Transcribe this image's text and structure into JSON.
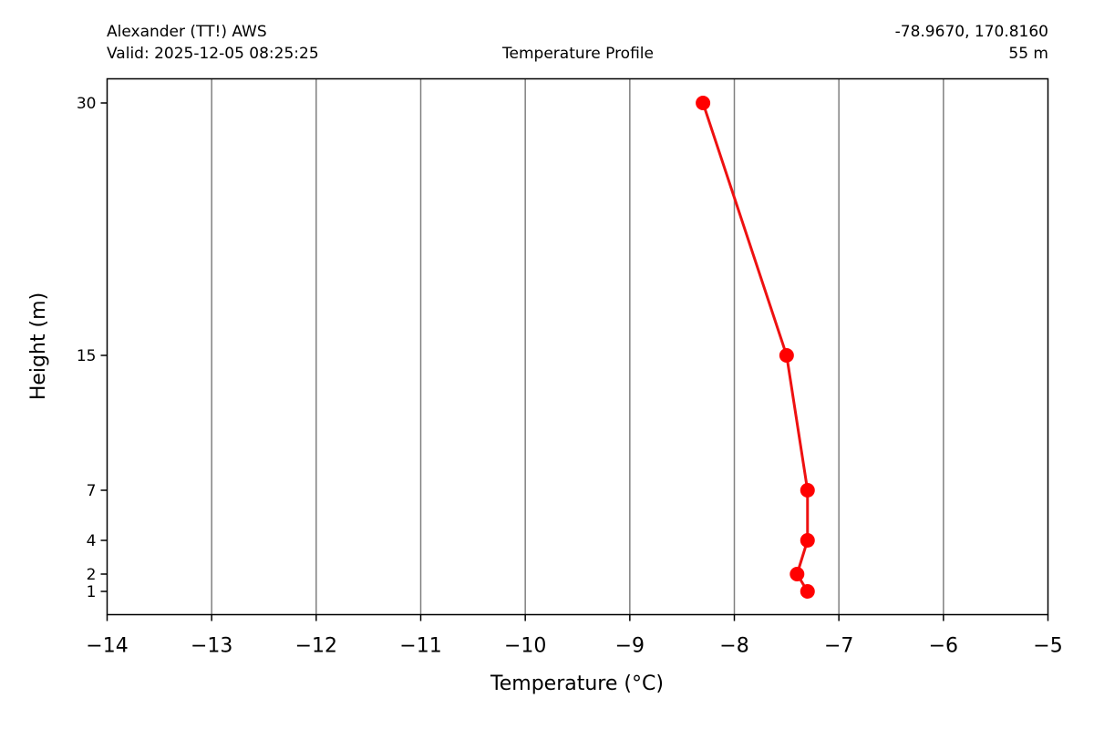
{
  "header": {
    "station": "Alexander (TT!) AWS",
    "valid": "Valid: 2025-12-05 08:25:25",
    "coords": "-78.9670, 170.8160",
    "elevation": "55 m"
  },
  "chart_data": {
    "type": "line",
    "title": "Temperature Profile",
    "xlabel": "Temperature (°C)",
    "ylabel": "Height (m)",
    "xlim": [
      -14,
      -5
    ],
    "xticks": [
      -14,
      -13,
      -12,
      -11,
      -10,
      -9,
      -8,
      -7,
      -6,
      -5
    ],
    "yticks": [
      1,
      2,
      4,
      7,
      15,
      30
    ],
    "grid": "vertical",
    "series": [
      {
        "points": [
          {
            "x": -7.3,
            "y": 1
          },
          {
            "x": -7.4,
            "y": 2
          },
          {
            "x": -7.3,
            "y": 4
          },
          {
            "x": -7.3,
            "y": 7
          },
          {
            "x": -7.5,
            "y": 15
          },
          {
            "x": -8.3,
            "y": 30
          }
        ]
      }
    ],
    "colors": {
      "line": "#ee1111",
      "marker": "#ff0000",
      "grid": "#808080"
    }
  }
}
